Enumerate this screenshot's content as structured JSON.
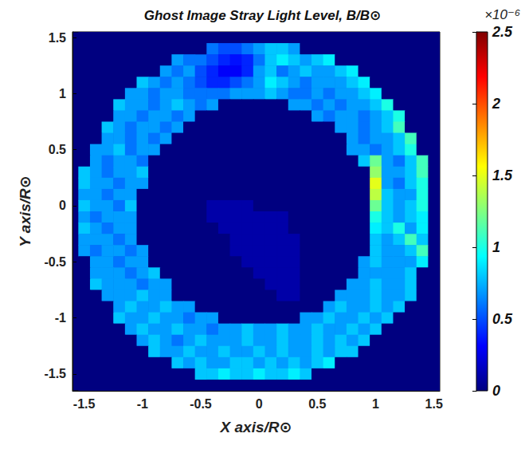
{
  "chart_data": {
    "type": "heatmap",
    "title": "Ghost Image Stray Light Level, B/B⊙",
    "x_label": "X axis/R⊙",
    "y_label": "Y axis/R⊙",
    "xlim": [
      -1.6,
      1.55
    ],
    "ylim": [
      -1.65,
      1.55
    ],
    "xticks": [
      -1.5,
      -1,
      -0.5,
      0,
      0.5,
      1,
      1.5
    ],
    "yticks": [
      -1.5,
      -1,
      -0.5,
      0,
      0.5,
      1,
      1.5
    ],
    "grid": false,
    "colorbar": {
      "lim": [
        0,
        2.5
      ],
      "ticks": [
        0,
        0.5,
        1,
        1.5,
        2,
        2.5
      ],
      "multiplier": "×10⁻⁶"
    },
    "cells": {
      "x": [
        -1.5,
        -1.4,
        -1.3,
        -1.2,
        -1.1,
        -1,
        -0.9,
        -0.8,
        -0.7,
        -0.6,
        -0.5,
        -0.4,
        -0.3,
        -0.2,
        -0.1,
        0,
        0.1,
        0.2,
        0.3,
        0.4,
        0.5,
        0.6,
        0.7,
        0.8,
        0.9,
        1,
        1.1,
        1.2,
        1.3,
        1.4,
        1.5
      ],
      "y": [
        1.5,
        1.4,
        1.3,
        1.2,
        1.1,
        1,
        0.9,
        0.8,
        0.7,
        0.6,
        0.5,
        0.4,
        0.3,
        0.2,
        0.1,
        0,
        -0.1,
        -0.2,
        -0.3,
        -0.4,
        -0.5,
        -0.6,
        -0.7,
        -0.8,
        -0.9,
        -1,
        -1.1,
        -1.2,
        -1.3,
        -1.4,
        -1.5,
        -1.6
      ],
      "z": [
        [
          0,
          0,
          0,
          0,
          0,
          0,
          0,
          0,
          0,
          0,
          0,
          0,
          0,
          0,
          0,
          0,
          0,
          0,
          0,
          0,
          0,
          0,
          0,
          0,
          0,
          0,
          0,
          0,
          0,
          0,
          0
        ],
        [
          0,
          0,
          0,
          0,
          0,
          0,
          0,
          0,
          0,
          0,
          0,
          0.6,
          0.5,
          0.5,
          0.6,
          0.7,
          0.8,
          0.8,
          0.7,
          0,
          0,
          0,
          0,
          0,
          0,
          0,
          0,
          0,
          0,
          0,
          0
        ],
        [
          0,
          0,
          0,
          0,
          0,
          0,
          0,
          0,
          0.7,
          0.6,
          0.6,
          0.5,
          0.4,
          0.35,
          0.4,
          0.6,
          0.8,
          0.9,
          0.8,
          0.7,
          0.8,
          0.9,
          0,
          0,
          0,
          0,
          0,
          0,
          0,
          0,
          0
        ],
        [
          0,
          0,
          0,
          0,
          0,
          0,
          0,
          0.7,
          0.6,
          0.7,
          0.5,
          0.4,
          0.3,
          0.3,
          0.4,
          0.7,
          0.8,
          0.6,
          0.7,
          0.8,
          0.7,
          0.7,
          0.8,
          0.9,
          0,
          0,
          0,
          0,
          0,
          0,
          0
        ],
        [
          0,
          0,
          0,
          0,
          0,
          0.8,
          0.7,
          0.6,
          0.7,
          0.6,
          0.5,
          0.4,
          0.4,
          0.5,
          0.6,
          0.7,
          0.9,
          0.8,
          0.7,
          0.6,
          0.7,
          0.7,
          0.7,
          0.8,
          0.9,
          0,
          0,
          0,
          0,
          0,
          0
        ],
        [
          0,
          0,
          0,
          0,
          0.7,
          0.7,
          0.6,
          0.7,
          0.7,
          0.6,
          0.6,
          0.6,
          0.6,
          0.7,
          0.7,
          0.7,
          0.8,
          0.7,
          0.6,
          0.6,
          0.7,
          0.6,
          0.7,
          0.7,
          0.8,
          0.9,
          0,
          0,
          0,
          0,
          0
        ],
        [
          0,
          0,
          0,
          0.8,
          0.7,
          0.7,
          0.6,
          0.7,
          0.8,
          0.7,
          0.6,
          0.7,
          0,
          0,
          0,
          0,
          0,
          0,
          0.7,
          0.7,
          0.6,
          0.7,
          0.6,
          0.7,
          0.7,
          0.8,
          1.0,
          0,
          0,
          0,
          0
        ],
        [
          0,
          0,
          0,
          0.7,
          0.7,
          0.6,
          0.7,
          0.7,
          0.6,
          0.7,
          0,
          0,
          0,
          0,
          0,
          0,
          0,
          0,
          0,
          0,
          0.7,
          0.6,
          0.7,
          0.7,
          0.6,
          0.7,
          0.8,
          1.0,
          0,
          0,
          0
        ],
        [
          0,
          0,
          0.8,
          0.7,
          0.6,
          0.7,
          0.7,
          0.6,
          0.7,
          0,
          0,
          0,
          0,
          0,
          0,
          0,
          0,
          0,
          0,
          0,
          0,
          0,
          0.7,
          0.7,
          0.6,
          0.7,
          0.8,
          1.1,
          0,
          0,
          0
        ],
        [
          0,
          0,
          0.7,
          0.7,
          0.6,
          0.7,
          0.6,
          0.7,
          0,
          0,
          0,
          0,
          0,
          0,
          0,
          0,
          0,
          0,
          0,
          0,
          0,
          0,
          0,
          0.7,
          0.6,
          0.7,
          0.7,
          0.8,
          1.1,
          0,
          0
        ],
        [
          0,
          0.7,
          0.7,
          0.8,
          0.6,
          0.7,
          0.7,
          0,
          0,
          0,
          0,
          0,
          0,
          0,
          0,
          0,
          0,
          0,
          0,
          0,
          0,
          0,
          0,
          0.7,
          0.7,
          0.6,
          0.7,
          0.8,
          1.0,
          0,
          0
        ],
        [
          0,
          0.7,
          0.6,
          0.7,
          0.7,
          0.6,
          0,
          0,
          0,
          0,
          0,
          0,
          0,
          0,
          0,
          0,
          0,
          0,
          0,
          0,
          0,
          0,
          0,
          0,
          0.8,
          1.2,
          0.7,
          0.6,
          0.8,
          1.1,
          0
        ],
        [
          0.8,
          0.7,
          0.6,
          0.7,
          0.7,
          0.8,
          0,
          0,
          0,
          0,
          0,
          0,
          0,
          0,
          0,
          0,
          0,
          0,
          0,
          0,
          0,
          0,
          0,
          0,
          0,
          1.3,
          0.7,
          0.7,
          0.8,
          1.1,
          0
        ],
        [
          0.8,
          0.7,
          0.7,
          0.6,
          0.7,
          0.7,
          0,
          0,
          0,
          0,
          0,
          0,
          0,
          0,
          0,
          0,
          0,
          0,
          0,
          0,
          0,
          0,
          0,
          0,
          0,
          1.5,
          0.7,
          0.6,
          0.8,
          1.0,
          0
        ],
        [
          0.7,
          0.7,
          0.6,
          0.7,
          0.7,
          0,
          0,
          0,
          0,
          0,
          0,
          0,
          0,
          0,
          0,
          0,
          0,
          0,
          0,
          0,
          0,
          0,
          0,
          0,
          0,
          1.4,
          0.8,
          0.7,
          0.7,
          1.0,
          0
        ],
        [
          0.8,
          0.7,
          0.7,
          0.6,
          0.8,
          0,
          0,
          0,
          0,
          0,
          0,
          0.1,
          0.1,
          0.1,
          0.1,
          0,
          0,
          0,
          0,
          0,
          0,
          0,
          0,
          0,
          0,
          1.2,
          0.8,
          0.7,
          0.8,
          1.0,
          0
        ],
        [
          0.7,
          0.6,
          0.7,
          0.7,
          0.7,
          0,
          0,
          0,
          0,
          0,
          0,
          0.1,
          0.1,
          0.1,
          0.1,
          0.1,
          0.1,
          0.1,
          0,
          0,
          0,
          0,
          0,
          0,
          0,
          1.0,
          0.8,
          0.7,
          0.8,
          0.9,
          0
        ],
        [
          0.8,
          0.7,
          0.6,
          0.7,
          0.7,
          0,
          0,
          0,
          0,
          0,
          0,
          0,
          0.1,
          0.1,
          0.1,
          0.1,
          0.1,
          0.1,
          0,
          0,
          0,
          0,
          0,
          0,
          0,
          0.9,
          0.8,
          1.0,
          0.7,
          0.9,
          0
        ],
        [
          0.7,
          0.7,
          0.7,
          0.6,
          0.7,
          0,
          0,
          0,
          0,
          0,
          0,
          0,
          0,
          0.1,
          0.1,
          0.1,
          0.1,
          0.1,
          0.1,
          0,
          0,
          0,
          0,
          0,
          0,
          0.8,
          0.7,
          0.8,
          1.1,
          0.8,
          0
        ],
        [
          0.7,
          0.6,
          0.7,
          0.7,
          0.6,
          0.7,
          0,
          0,
          0,
          0,
          0,
          0,
          0,
          0.1,
          0.1,
          0.1,
          0.1,
          0.1,
          0.1,
          0,
          0,
          0,
          0,
          0,
          0,
          0.8,
          0.7,
          0.7,
          0.8,
          1.1,
          0
        ],
        [
          0,
          0.7,
          0.7,
          0.6,
          0.7,
          0.7,
          0,
          0,
          0,
          0,
          0,
          0,
          0,
          0,
          0.1,
          0.1,
          0.1,
          0.1,
          0.1,
          0,
          0,
          0,
          0,
          0,
          0.7,
          0.8,
          0.7,
          0.7,
          0.7,
          0.9,
          0
        ],
        [
          0,
          0.7,
          0.7,
          0.7,
          0.6,
          0.7,
          0.8,
          0,
          0,
          0,
          0,
          0,
          0,
          0,
          0,
          0.1,
          0.1,
          0.1,
          0.1,
          0,
          0,
          0,
          0,
          0,
          0.7,
          0.7,
          0.7,
          0.7,
          0.8,
          0,
          0
        ],
        [
          0,
          0.8,
          0.7,
          0.7,
          0.7,
          0.6,
          0.7,
          0.7,
          0,
          0,
          0,
          0,
          0,
          0,
          0,
          0,
          0.1,
          0.1,
          0.1,
          0,
          0,
          0,
          0,
          0.7,
          0.7,
          0.8,
          0.7,
          0.7,
          0.8,
          0,
          0
        ],
        [
          0,
          0,
          0.7,
          0.7,
          0.7,
          0.8,
          0.7,
          0.7,
          0,
          0,
          0,
          0,
          0,
          0,
          0,
          0,
          0,
          0.1,
          0.1,
          0,
          0,
          0,
          0.7,
          0.7,
          0.7,
          0.8,
          0.7,
          0.7,
          0.8,
          0,
          0
        ],
        [
          0,
          0,
          0,
          0.7,
          0.8,
          0.7,
          0.7,
          0.8,
          0.7,
          0.7,
          0,
          0,
          0,
          0,
          0,
          0,
          0,
          0,
          0,
          0,
          0,
          0.7,
          0.8,
          0.7,
          0.7,
          0.8,
          0.7,
          0.8,
          0,
          0,
          0
        ],
        [
          0,
          0,
          0,
          0.8,
          0.7,
          0.7,
          0.8,
          0.7,
          0.7,
          0.6,
          0.7,
          0.7,
          0,
          0,
          0,
          0,
          0,
          0,
          0,
          0.7,
          0.7,
          0.8,
          0.7,
          0.7,
          0.8,
          0.7,
          0.8,
          0,
          0,
          0,
          0
        ],
        [
          0,
          0,
          0,
          0,
          0.7,
          0.8,
          0.7,
          0.7,
          0.8,
          0.7,
          0.7,
          0.6,
          0.7,
          0.7,
          0.8,
          0.7,
          0.7,
          0.8,
          0.7,
          0.7,
          0.8,
          0.7,
          0.7,
          0.8,
          0.7,
          0.8,
          0,
          0,
          0,
          0,
          0
        ],
        [
          0,
          0,
          0,
          0,
          0,
          0.7,
          0.8,
          0.7,
          0.6,
          0.7,
          0.8,
          0.7,
          0.7,
          0.7,
          0.8,
          0.7,
          0.7,
          0.8,
          0.7,
          0.7,
          0.8,
          0.7,
          0.8,
          0.7,
          0.8,
          0,
          0,
          0,
          0,
          0,
          0
        ],
        [
          0,
          0,
          0,
          0,
          0,
          0,
          0.8,
          0.7,
          0.7,
          0.8,
          0.7,
          0.7,
          0.8,
          0.7,
          0.7,
          0.8,
          0.7,
          0.8,
          0.7,
          0.7,
          0.8,
          0.7,
          0.8,
          0.8,
          0,
          0,
          0,
          0,
          0,
          0,
          0
        ],
        [
          0,
          0,
          0,
          0,
          0,
          0,
          0,
          0,
          0.8,
          0.7,
          0.8,
          0.7,
          0.7,
          0.8,
          0.8,
          0.7,
          0.8,
          0.7,
          0.8,
          0.7,
          0.8,
          0.9,
          0,
          0,
          0,
          0,
          0,
          0,
          0,
          0,
          0
        ],
        [
          0,
          0,
          0,
          0,
          0,
          0,
          0,
          0,
          0,
          0,
          0.8,
          0.8,
          0.9,
          0.8,
          0.8,
          0.9,
          0.8,
          0.8,
          0.9,
          0.8,
          0,
          0,
          0,
          0,
          0,
          0,
          0,
          0,
          0,
          0,
          0
        ],
        [
          0,
          0,
          0,
          0,
          0,
          0,
          0,
          0,
          0,
          0,
          0,
          0,
          0,
          0,
          0,
          0,
          0,
          0,
          0,
          0,
          0,
          0,
          0,
          0,
          0,
          0,
          0,
          0,
          0,
          0,
          0
        ]
      ]
    }
  }
}
